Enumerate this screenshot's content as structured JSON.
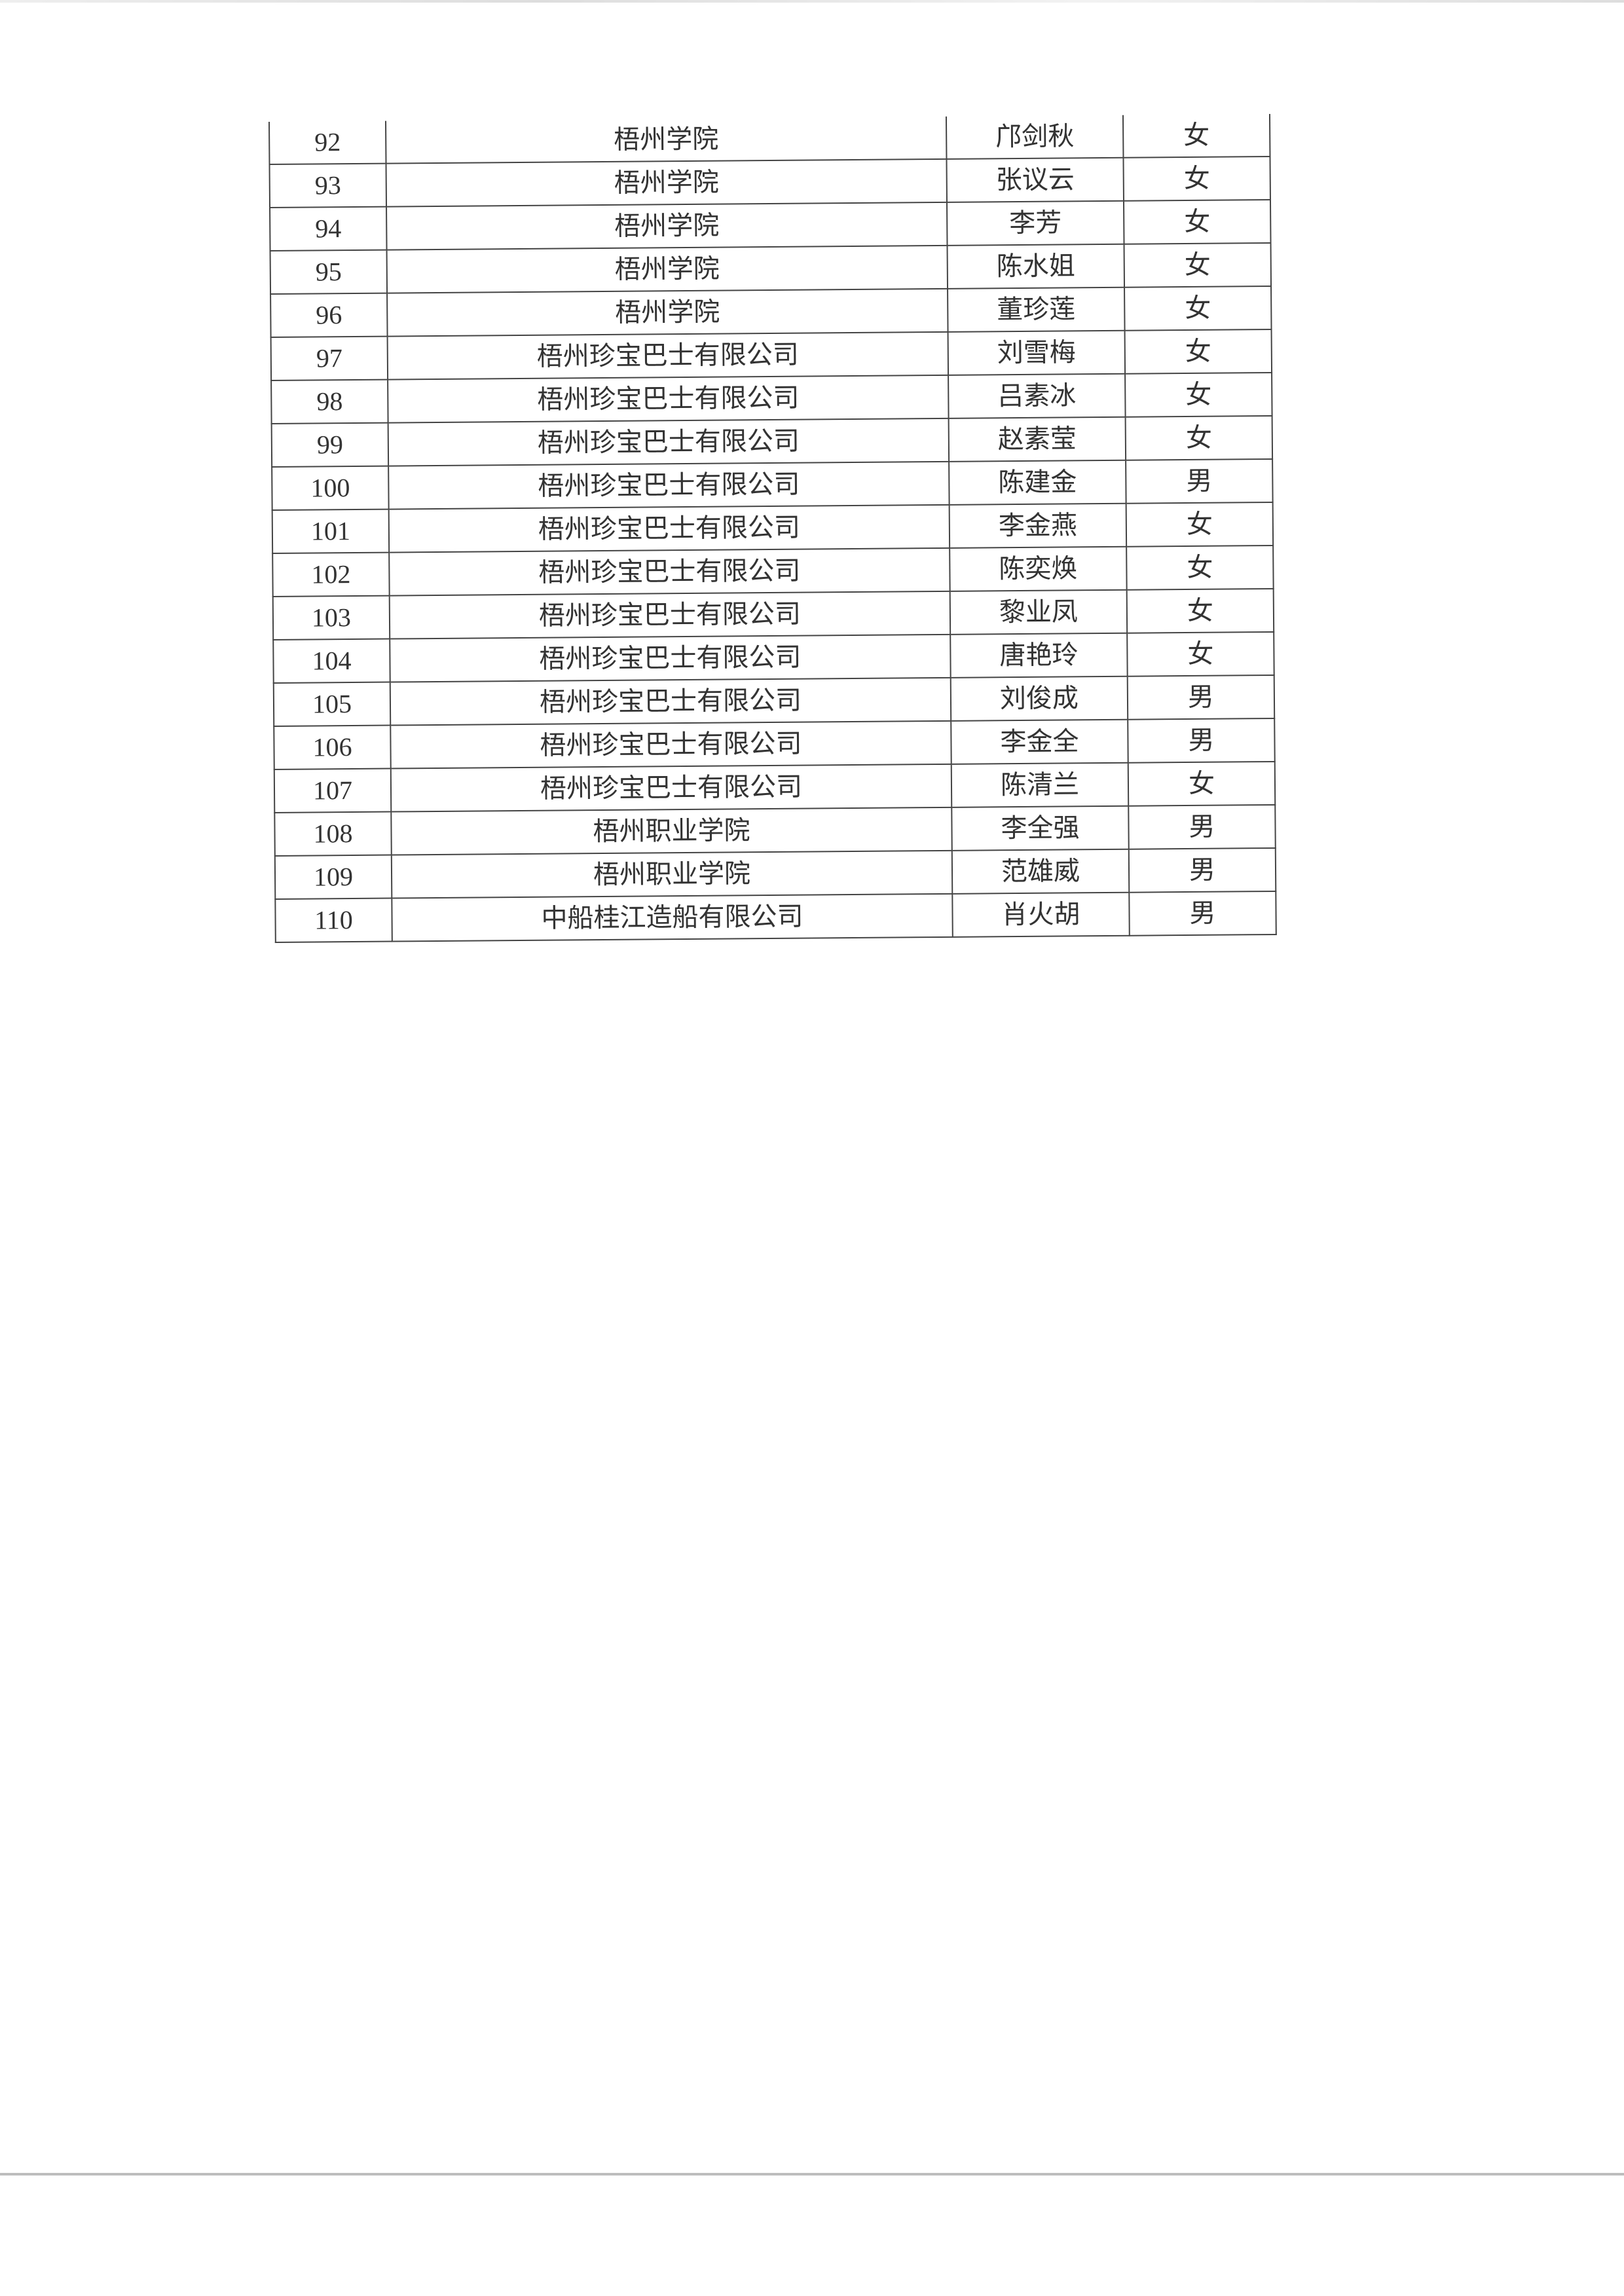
{
  "rows": [
    {
      "no": "92",
      "org": "梧州学院",
      "name": "邝剑秋",
      "gender": "女"
    },
    {
      "no": "93",
      "org": "梧州学院",
      "name": "张议云",
      "gender": "女"
    },
    {
      "no": "94",
      "org": "梧州学院",
      "name": "李芳",
      "gender": "女"
    },
    {
      "no": "95",
      "org": "梧州学院",
      "name": "陈水姐",
      "gender": "女"
    },
    {
      "no": "96",
      "org": "梧州学院",
      "name": "董珍莲",
      "gender": "女"
    },
    {
      "no": "97",
      "org": "梧州珍宝巴士有限公司",
      "name": "刘雪梅",
      "gender": "女"
    },
    {
      "no": "98",
      "org": "梧州珍宝巴士有限公司",
      "name": "吕素冰",
      "gender": "女"
    },
    {
      "no": "99",
      "org": "梧州珍宝巴士有限公司",
      "name": "赵素莹",
      "gender": "女"
    },
    {
      "no": "100",
      "org": "梧州珍宝巴士有限公司",
      "name": "陈建金",
      "gender": "男"
    },
    {
      "no": "101",
      "org": "梧州珍宝巴士有限公司",
      "name": "李金燕",
      "gender": "女"
    },
    {
      "no": "102",
      "org": "梧州珍宝巴士有限公司",
      "name": "陈奕焕",
      "gender": "女"
    },
    {
      "no": "103",
      "org": "梧州珍宝巴士有限公司",
      "name": "黎业凤",
      "gender": "女"
    },
    {
      "no": "104",
      "org": "梧州珍宝巴士有限公司",
      "name": "唐艳玲",
      "gender": "女"
    },
    {
      "no": "105",
      "org": "梧州珍宝巴士有限公司",
      "name": "刘俊成",
      "gender": "男"
    },
    {
      "no": "106",
      "org": "梧州珍宝巴士有限公司",
      "name": "李金全",
      "gender": "男"
    },
    {
      "no": "107",
      "org": "梧州珍宝巴士有限公司",
      "name": "陈清兰",
      "gender": "女"
    },
    {
      "no": "108",
      "org": "梧州职业学院",
      "name": "李全强",
      "gender": "男"
    },
    {
      "no": "109",
      "org": "梧州职业学院",
      "name": "范雄威",
      "gender": "男"
    },
    {
      "no": "110",
      "org": "中船桂江造船有限公司",
      "name": "肖火胡",
      "gender": "男"
    }
  ]
}
